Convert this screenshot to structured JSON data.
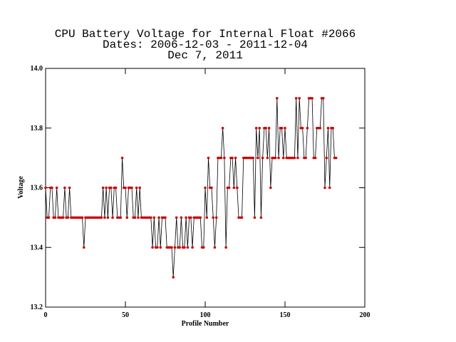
{
  "chart_data": {
    "type": "line",
    "title": [
      "CPU Battery Voltage for Internal Float #2066",
      "Dates:  2006-12-03 -  2011-12-04",
      "Dec  7, 2011"
    ],
    "x_label": "Profile Number",
    "y_label": "Voltage",
    "xlim": [
      0,
      200
    ],
    "xticks": [
      0,
      50,
      100,
      150,
      200
    ],
    "ylim": [
      13.2,
      14
    ],
    "yticks": [
      13.2,
      13.4,
      13.6,
      13.8,
      {
        "value": 14,
        "label": "14.0"
      }
    ],
    "line_color": "#000000",
    "marker_color": "#cc0000",
    "x": [
      0,
      1,
      2,
      3,
      4,
      5,
      6,
      7,
      8,
      9,
      10,
      11,
      12,
      13,
      14,
      15,
      16,
      17,
      18,
      19,
      20,
      21,
      22,
      23,
      24,
      25,
      26,
      27,
      28,
      29,
      30,
      31,
      32,
      33,
      34,
      35,
      36,
      37,
      38,
      39,
      40,
      41,
      42,
      43,
      44,
      45,
      46,
      47,
      48,
      49,
      50,
      51,
      52,
      53,
      54,
      55,
      56,
      57,
      58,
      59,
      60,
      61,
      62,
      63,
      64,
      65,
      66,
      67,
      68,
      69,
      70,
      71,
      72,
      73,
      74,
      75,
      76,
      77,
      78,
      79,
      80,
      81,
      82,
      83,
      84,
      85,
      86,
      87,
      88,
      89,
      90,
      91,
      92,
      93,
      94,
      95,
      96,
      97,
      98,
      99,
      100,
      101,
      102,
      103,
      104,
      105,
      106,
      107,
      108,
      109,
      110,
      111,
      112,
      113,
      114,
      115,
      116,
      117,
      118,
      119,
      120,
      121,
      122,
      123,
      124,
      125,
      126,
      127,
      128,
      129,
      130,
      131,
      132,
      133,
      134,
      135,
      136,
      137,
      138,
      139,
      140,
      141,
      142,
      143,
      144,
      145,
      146,
      147,
      148,
      149,
      150,
      151,
      152,
      153,
      154,
      155,
      156,
      157,
      158,
      159,
      160,
      161,
      162,
      163,
      164,
      165,
      166,
      167,
      168,
      169,
      170,
      171,
      172,
      173,
      174,
      175,
      176,
      177,
      178,
      179,
      180,
      181,
      182
    ],
    "values": [
      13.6,
      13.5,
      13.5,
      13.6,
      13.6,
      13.5,
      13.5,
      13.6,
      13.5,
      13.5,
      13.5,
      13.5,
      13.6,
      13.5,
      13.5,
      13.6,
      13.5,
      13.5,
      13.5,
      13.5,
      13.5,
      13.5,
      13.5,
      13.5,
      13.4,
      13.5,
      13.5,
      13.5,
      13.5,
      13.5,
      13.5,
      13.5,
      13.5,
      13.5,
      13.5,
      13.5,
      13.6,
      13.5,
      13.6,
      13.5,
      13.6,
      13.6,
      13.5,
      13.6,
      13.6,
      13.5,
      13.5,
      13.5,
      13.7,
      13.6,
      13.6,
      13.5,
      13.6,
      13.6,
      13.6,
      13.5,
      13.5,
      13.6,
      13.5,
      13.6,
      13.5,
      13.5,
      13.5,
      13.5,
      13.5,
      13.5,
      13.5,
      13.4,
      13.5,
      13.4,
      13.4,
      13.5,
      13.4,
      13.5,
      13.5,
      13.5,
      13.4,
      13.4,
      13.4,
      13.4,
      13.3,
      13.4,
      13.5,
      13.4,
      13.4,
      13.5,
      13.4,
      13.4,
      13.5,
      13.4,
      13.5,
      13.5,
      13.4,
      13.5,
      13.5,
      13.5,
      13.5,
      13.5,
      13.4,
      13.4,
      13.6,
      13.5,
      13.7,
      13.6,
      13.6,
      13.5,
      13.4,
      13.5,
      13.7,
      13.7,
      13.7,
      13.8,
      13.7,
      13.4,
      13.6,
      13.6,
      13.7,
      13.7,
      13.6,
      13.7,
      13.6,
      13.5,
      13.5,
      13.5,
      13.7,
      13.7,
      13.7,
      13.7,
      13.7,
      13.7,
      13.7,
      13.5,
      13.8,
      13.7,
      13.8,
      13.5,
      13.7,
      13.8,
      13.8,
      13.7,
      13.8,
      13.6,
      13.7,
      13.7,
      13.7,
      13.9,
      13.7,
      13.8,
      13.8,
      13.7,
      13.8,
      13.7,
      13.7,
      13.7,
      13.7,
      13.7,
      13.7,
      13.9,
      13.7,
      13.9,
      13.8,
      13.8,
      13.7,
      13.7,
      13.8,
      13.9,
      13.9,
      13.9,
      13.7,
      13.7,
      13.8,
      13.8,
      13.8,
      13.9,
      13.9,
      13.6,
      13.7,
      13.8,
      13.6,
      13.8,
      13.8,
      13.7,
      13.7
    ]
  }
}
